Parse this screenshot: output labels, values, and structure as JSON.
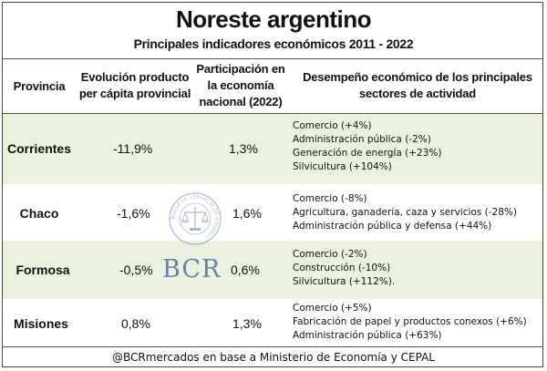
{
  "title": "Noreste argentino",
  "subtitle": "Principales indicadores económicos 2011 - 2022",
  "headers": {
    "provincia": "Provincia",
    "evolucion_l1": "Evolución producto",
    "evolucion_l2": "per cápita provincial",
    "participacion_l1": "Participación en",
    "participacion_l2": "la economía",
    "participacion_l3": "nacional (2022)",
    "desempeno_l1": "Desempeño económico de los principales",
    "desempeno_l2": "sectores de actividad"
  },
  "rows": [
    {
      "provincia": "Corrientes",
      "evolucion": "-11,9%",
      "participacion": "1,3%",
      "sectores": [
        "Comercio (+4%)",
        "Administración pública (-2%)",
        "Generación de energía (+23%)",
        "Silvicultura (+104%)"
      ]
    },
    {
      "provincia": "Chaco",
      "evolucion": "-1,6%",
      "participacion": "1,6%",
      "sectores": [
        "Comercio (-8%)",
        "Agricultura, ganadería, caza y servicios (-28%)",
        "Administración pública y defensa (+44%)"
      ]
    },
    {
      "provincia": "Formosa",
      "evolucion": "-0,5%",
      "participacion": "0,6%",
      "sectores": [
        "Comercio (-2%)",
        "Construcción (-10%)",
        "Silvicultura (+112%)."
      ]
    },
    {
      "provincia": "Misiones",
      "evolucion": "0,8%",
      "participacion": "1,3%",
      "sectores": [
        "Comercio (+5%)",
        "Fabricación de papel y productos conexos (+6%)",
        "Administración pública (+63%)"
      ]
    }
  ],
  "watermark": {
    "seal_text": "BOLSA DE COMERCIO DE ROSARIO",
    "logo_text": "BCR"
  },
  "footer": "@BCRmercados en base a Ministerio de Economía y CEPAL",
  "colors": {
    "row_green": "#e9f2df",
    "logo_blue": "#6b7ea8"
  }
}
